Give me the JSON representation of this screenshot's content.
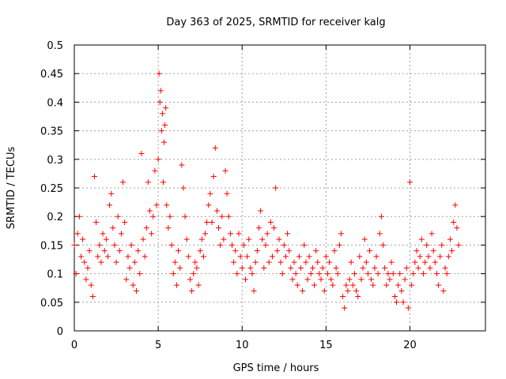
{
  "chart_data": {
    "type": "scatter",
    "title": "Day 363 of 2025, SRMTID for receiver kalg",
    "xlabel": "GPS time / hours",
    "ylabel": "SRMTID / TECUs",
    "xlim": [
      0,
      24.5
    ],
    "ylim": [
      0,
      0.5
    ],
    "xticks": [
      0,
      5,
      10,
      15,
      20
    ],
    "xtick_labels": [
      "0",
      "5",
      "10",
      "15",
      "20"
    ],
    "yticks": [
      0,
      0.05,
      0.1,
      0.15,
      0.2,
      0.25,
      0.3,
      0.35,
      0.4,
      0.45,
      0.5
    ],
    "ytick_labels": [
      "0",
      "0.05",
      "0.1",
      "0.15",
      "0.2",
      "0.25",
      "0.3",
      "0.35",
      "0.4",
      "0.45",
      "0.5"
    ],
    "grid": true,
    "marker": "+",
    "marker_color": "#ff0000",
    "series": [
      {
        "name": "SRMTID",
        "x": [
          0.0,
          0.1,
          0.2,
          0.3,
          0.4,
          0.5,
          0.6,
          0.7,
          0.8,
          0.9,
          1.0,
          1.1,
          1.2,
          1.3,
          1.4,
          1.5,
          1.6,
          1.7,
          1.8,
          1.9,
          2.0,
          2.1,
          2.2,
          2.3,
          2.4,
          2.5,
          2.6,
          2.7,
          2.8,
          2.9,
          3.0,
          3.1,
          3.2,
          3.3,
          3.4,
          3.5,
          3.6,
          3.7,
          3.8,
          3.9,
          4.0,
          4.1,
          4.2,
          4.3,
          4.4,
          4.5,
          4.6,
          4.7,
          4.8,
          4.9,
          5.0,
          5.05,
          5.1,
          5.15,
          5.2,
          5.25,
          5.3,
          5.35,
          5.4,
          5.45,
          5.5,
          5.6,
          5.7,
          5.8,
          5.9,
          6.0,
          6.1,
          6.2,
          6.3,
          6.4,
          6.5,
          6.6,
          6.7,
          6.8,
          6.9,
          7.0,
          7.1,
          7.2,
          7.3,
          7.4,
          7.5,
          7.6,
          7.7,
          7.8,
          7.9,
          8.0,
          8.1,
          8.2,
          8.3,
          8.4,
          8.5,
          8.6,
          8.7,
          8.8,
          8.9,
          9.0,
          9.1,
          9.2,
          9.3,
          9.4,
          9.5,
          9.6,
          9.7,
          9.8,
          9.9,
          10.0,
          10.1,
          10.2,
          10.3,
          10.4,
          10.5,
          10.6,
          10.7,
          10.8,
          10.9,
          11.0,
          11.1,
          11.2,
          11.3,
          11.4,
          11.5,
          11.6,
          11.7,
          11.8,
          11.9,
          12.0,
          12.1,
          12.2,
          12.3,
          12.4,
          12.5,
          12.6,
          12.7,
          12.8,
          12.9,
          13.0,
          13.1,
          13.2,
          13.3,
          13.4,
          13.5,
          13.6,
          13.7,
          13.8,
          13.9,
          14.0,
          14.1,
          14.2,
          14.3,
          14.4,
          14.5,
          14.6,
          14.7,
          14.8,
          14.9,
          15.0,
          15.1,
          15.2,
          15.3,
          15.4,
          15.5,
          15.6,
          15.7,
          15.8,
          15.9,
          16.0,
          16.1,
          16.2,
          16.3,
          16.4,
          16.5,
          16.6,
          16.7,
          16.8,
          16.9,
          17.0,
          17.1,
          17.2,
          17.3,
          17.4,
          17.5,
          17.6,
          17.7,
          17.8,
          17.9,
          18.0,
          18.1,
          18.2,
          18.3,
          18.4,
          18.5,
          18.6,
          18.7,
          18.8,
          18.9,
          19.0,
          19.1,
          19.2,
          19.3,
          19.4,
          19.5,
          19.6,
          19.7,
          19.8,
          19.9,
          20.0,
          20.1,
          20.2,
          20.3,
          20.4,
          20.5,
          20.6,
          20.7,
          20.8,
          20.9,
          21.0,
          21.1,
          21.2,
          21.3,
          21.4,
          21.5,
          21.6,
          21.7,
          21.8,
          21.9,
          22.0,
          22.1,
          22.2,
          22.3,
          22.4,
          22.5,
          22.6,
          22.7,
          22.8,
          22.9
        ],
        "y": [
          0.15,
          0.1,
          0.17,
          0.2,
          0.13,
          0.16,
          0.12,
          0.09,
          0.11,
          0.14,
          0.08,
          0.06,
          0.27,
          0.19,
          0.13,
          0.15,
          0.12,
          0.17,
          0.14,
          0.16,
          0.13,
          0.22,
          0.24,
          0.18,
          0.15,
          0.12,
          0.2,
          0.14,
          0.17,
          0.26,
          0.19,
          0.09,
          0.13,
          0.11,
          0.15,
          0.08,
          0.12,
          0.07,
          0.14,
          0.1,
          0.31,
          0.16,
          0.13,
          0.18,
          0.26,
          0.21,
          0.17,
          0.2,
          0.28,
          0.22,
          0.3,
          0.45,
          0.4,
          0.42,
          0.35,
          0.38,
          0.26,
          0.33,
          0.36,
          0.39,
          0.22,
          0.18,
          0.2,
          0.15,
          0.1,
          0.12,
          0.08,
          0.14,
          0.11,
          0.29,
          0.25,
          0.2,
          0.16,
          0.13,
          0.09,
          0.07,
          0.1,
          0.12,
          0.11,
          0.08,
          0.14,
          0.16,
          0.13,
          0.17,
          0.19,
          0.22,
          0.24,
          0.19,
          0.27,
          0.32,
          0.21,
          0.18,
          0.15,
          0.2,
          0.16,
          0.28,
          0.24,
          0.2,
          0.17,
          0.15,
          0.12,
          0.14,
          0.1,
          0.17,
          0.13,
          0.11,
          0.15,
          0.09,
          0.13,
          0.16,
          0.11,
          0.1,
          0.07,
          0.12,
          0.14,
          0.18,
          0.21,
          0.16,
          0.11,
          0.15,
          0.17,
          0.12,
          0.19,
          0.13,
          0.18,
          0.25,
          0.14,
          0.16,
          0.12,
          0.1,
          0.15,
          0.13,
          0.17,
          0.14,
          0.11,
          0.09,
          0.12,
          0.1,
          0.08,
          0.13,
          0.11,
          0.07,
          0.15,
          0.12,
          0.09,
          0.13,
          0.1,
          0.11,
          0.08,
          0.14,
          0.12,
          0.1,
          0.09,
          0.11,
          0.07,
          0.13,
          0.1,
          0.12,
          0.09,
          0.08,
          0.14,
          0.11,
          0.1,
          0.15,
          0.17,
          0.06,
          0.04,
          0.08,
          0.07,
          0.09,
          0.12,
          0.08,
          0.1,
          0.07,
          0.06,
          0.13,
          0.09,
          0.11,
          0.16,
          0.12,
          0.1,
          0.14,
          0.09,
          0.08,
          0.11,
          0.13,
          0.1,
          0.17,
          0.2,
          0.15,
          0.11,
          0.08,
          0.1,
          0.09,
          0.12,
          0.1,
          0.06,
          0.05,
          0.08,
          0.1,
          0.07,
          0.05,
          0.09,
          0.11,
          0.04,
          0.26,
          0.08,
          0.1,
          0.12,
          0.14,
          0.11,
          0.13,
          0.16,
          0.1,
          0.12,
          0.15,
          0.13,
          0.11,
          0.17,
          0.14,
          0.12,
          0.1,
          0.08,
          0.13,
          0.15,
          0.07,
          0.11,
          0.1,
          0.13,
          0.16,
          0.14,
          0.19,
          0.22,
          0.18,
          0.15
        ]
      }
    ]
  }
}
